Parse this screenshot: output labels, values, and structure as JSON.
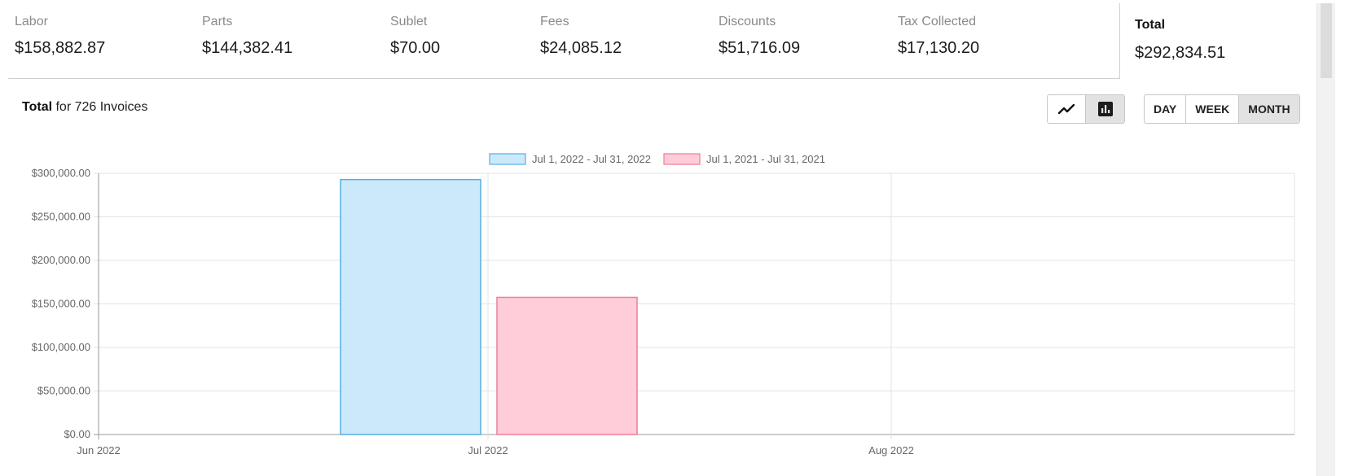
{
  "summary": [
    {
      "label": "Labor",
      "value": "$158,882.87"
    },
    {
      "label": "Parts",
      "value": "$144,382.41"
    },
    {
      "label": "Sublet",
      "value": "$70.00"
    },
    {
      "label": "Fees",
      "value": "$24,085.12"
    },
    {
      "label": "Discounts",
      "value": "$51,716.09"
    },
    {
      "label": "Tax Collected",
      "value": "$17,130.20"
    }
  ],
  "total": {
    "label": "Total",
    "value": "$292,834.51"
  },
  "caption": {
    "bold": "Total",
    "rest": " for 726 Invoices"
  },
  "chart_type_buttons": [
    {
      "icon": "line-chart-icon",
      "active": false
    },
    {
      "icon": "bar-chart-icon",
      "active": true
    }
  ],
  "range_buttons": [
    {
      "label": "DAY",
      "active": false
    },
    {
      "label": "WEEK",
      "active": false
    },
    {
      "label": "MONTH",
      "active": true
    }
  ],
  "chart_data": {
    "type": "bar",
    "x_ticks": [
      "Jun 2022",
      "Jul 2022",
      "Aug 2022"
    ],
    "y_ticks": [
      "$0.00",
      "$50,000.00",
      "$100,000.00",
      "$150,000.00",
      "$200,000.00",
      "$250,000.00",
      "$300,000.00"
    ],
    "ylim": [
      0,
      300000
    ],
    "grid": true,
    "legend_position": "top-center",
    "categories": [
      "Jul 2022"
    ],
    "series": [
      {
        "name": "Jul 1, 2022 - Jul 31, 2022",
        "values": [
          292834.51
        ],
        "fill": "#cce9fb",
        "stroke": "#56aee2"
      },
      {
        "name": "Jul 1, 2021 - Jul 31, 2021",
        "values": [
          157500
        ],
        "fill": "#ffcdd9",
        "stroke": "#f07c98"
      }
    ]
  }
}
